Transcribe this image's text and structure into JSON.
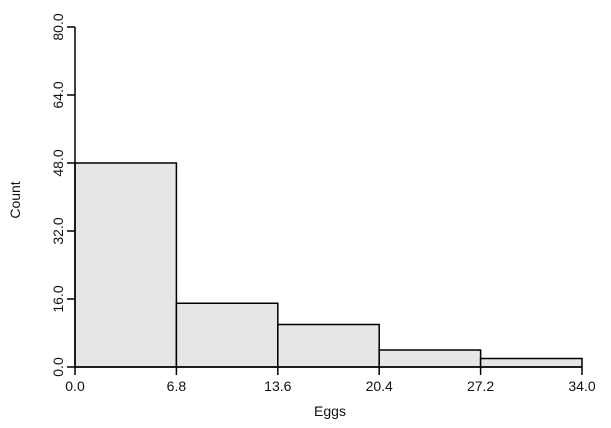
{
  "chart_data": {
    "type": "histogram",
    "x_label": "Eggs",
    "y_label": "Count",
    "bins": [
      0,
      6.8,
      13.6,
      20.4,
      27.2,
      34.0
    ],
    "values": [
      48,
      15,
      10,
      4,
      2
    ],
    "color": "#e6e6e6",
    "xlim": [
      0,
      34.0
    ],
    "ylim": [
      0,
      80.0
    ],
    "xticks": [
      {
        "value": 0,
        "label": "0.0"
      },
      {
        "value": 6.8,
        "label": "6.8"
      },
      {
        "value": 13.6,
        "label": "13.6"
      },
      {
        "value": 20.4,
        "label": "20.4"
      },
      {
        "value": 27.2,
        "label": "27.2"
      },
      {
        "value": 34.0,
        "label": "34.0"
      }
    ],
    "yticks": [
      {
        "value": 0,
        "label": "0.0"
      },
      {
        "value": 16,
        "label": "16.0"
      },
      {
        "value": 32,
        "label": "32.0"
      },
      {
        "value": 48,
        "label": "48.0"
      },
      {
        "value": 64,
        "label": "64.0"
      },
      {
        "value": 80,
        "label": "80.0"
      }
    ]
  }
}
